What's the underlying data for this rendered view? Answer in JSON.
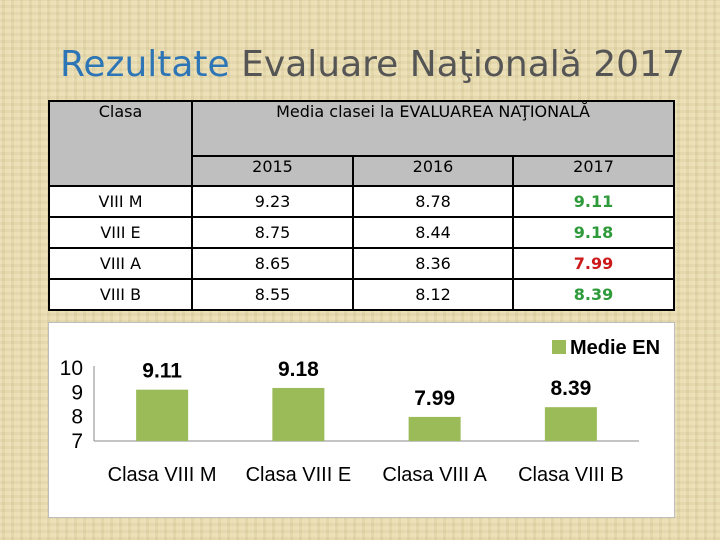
{
  "title": {
    "part1": "Rezultate",
    "part2": " Evaluare Naţională 2017"
  },
  "table": {
    "col_class_header": "Clasa",
    "col_media_header": "Media clasei la EVALUAREA NAŢIONALĂ",
    "years": [
      "2015",
      "2016",
      "2017"
    ],
    "rows": [
      {
        "class": "VIII M",
        "v2015": "9.23",
        "v2016": "8.78",
        "v2017": "9.11",
        "trend": "good"
      },
      {
        "class": "VIII E",
        "v2015": "8.75",
        "v2016": "8.44",
        "v2017": "9.18",
        "trend": "good"
      },
      {
        "class": "VIII A",
        "v2015": "8.65",
        "v2016": "8.36",
        "v2017": "7.99",
        "trend": "bad"
      },
      {
        "class": "VIII B",
        "v2015": "8.55",
        "v2016": "8.12",
        "v2017": "8.39",
        "trend": "good"
      }
    ],
    "colors": {
      "good": "#2e9a3a",
      "bad": "#cc1a1a",
      "header_bg": "#bfbfbf"
    }
  },
  "chart_data": {
    "type": "bar",
    "categories": [
      "Clasa VIII M",
      "Clasa VIII E",
      "Clasa VIII A",
      "Clasa VIII B"
    ],
    "series": [
      {
        "name": "Medie EN",
        "values": [
          9.11,
          9.18,
          7.99,
          8.39
        ],
        "color": "#9bbb59"
      }
    ],
    "data_labels": [
      "9.11",
      "9.18",
      "7.99",
      "8.39"
    ],
    "ylim": [
      7,
      10
    ],
    "yticks": [
      "10",
      "9",
      "8",
      "7"
    ],
    "legend_position": "top-right",
    "grid": false
  }
}
